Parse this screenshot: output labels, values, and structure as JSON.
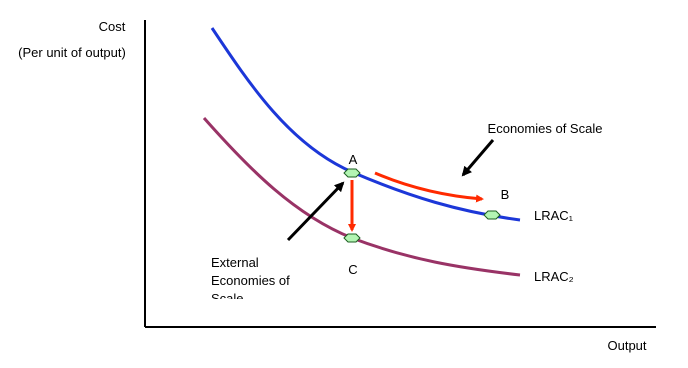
{
  "axes": {
    "y_label": "Cost",
    "y_sublabel": "(Per unit of output)",
    "x_label": "Output"
  },
  "annotations": {
    "economies_of_scale": "Economies of Scale",
    "external": [
      "External",
      "Economies of",
      "Scale"
    ]
  },
  "points": {
    "a": "A",
    "b": "B",
    "c": "C"
  },
  "curves": {
    "lrac1": "LRAC₁",
    "lrac2": "LRAC₂"
  }
}
